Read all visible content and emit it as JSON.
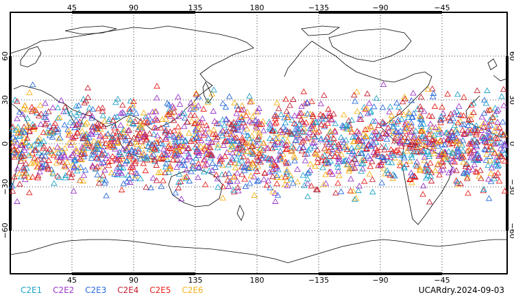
{
  "lon_ticks": [
    "45",
    "90",
    "135",
    "180",
    "−135",
    "−90",
    "−45"
  ],
  "lat_ticks": [
    "60",
    "30",
    "0",
    "−30",
    "−60"
  ],
  "legend": [
    {
      "label": "C2E1",
      "color": "#1fa3c9"
    },
    {
      "label": "C2E2",
      "color": "#9a35c9"
    },
    {
      "label": "C2E3",
      "color": "#2b6bdc"
    },
    {
      "label": "C2E4",
      "color": "#c42030"
    },
    {
      "label": "C2E5",
      "color": "#e8201a"
    },
    {
      "label": "C2E6",
      "color": "#f5b219"
    }
  ],
  "product_label": "UCARdry.2024-09-03",
  "observations": {
    "marker": "open-triangle",
    "lat_range": [
      -45,
      45
    ],
    "approx_count_shown": 2000
  }
}
